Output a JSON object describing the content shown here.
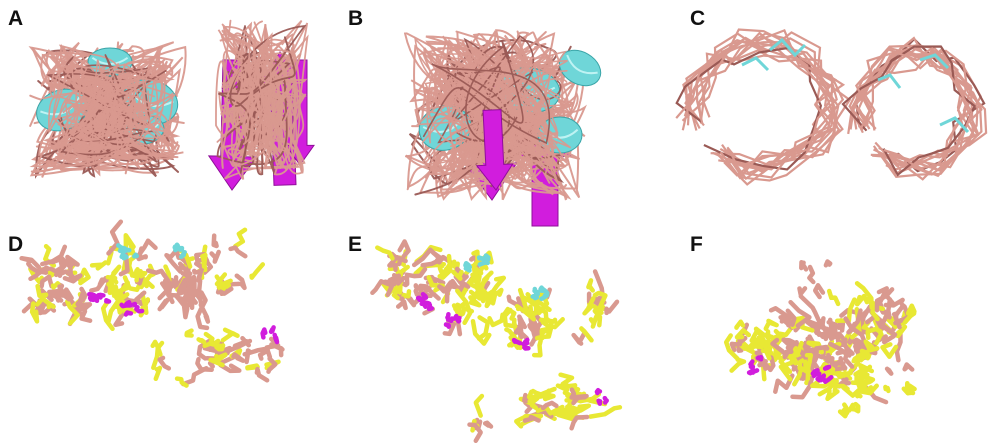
{
  "figure": {
    "panels": [
      {
        "label": "A"
      },
      {
        "label": "B"
      },
      {
        "label": "C"
      },
      {
        "label": "D"
      },
      {
        "label": "E"
      },
      {
        "label": "F"
      }
    ],
    "colors": {
      "coil": "#d9998f",
      "coil_dark": "#9a5a55",
      "helix": "#6fd6d8",
      "sheet": "#d11ddd",
      "sidechain_yellow": "#e8e834",
      "sidechain_cyan": "#6fd6d8"
    }
  }
}
